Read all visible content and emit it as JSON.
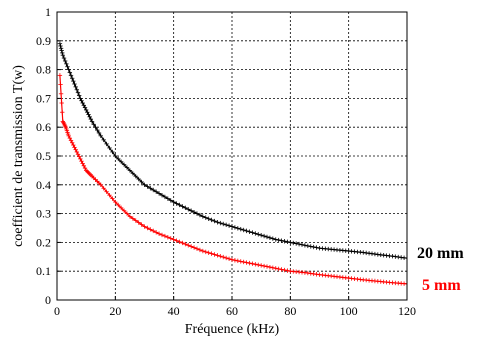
{
  "chart_data": {
    "type": "line",
    "title": "",
    "xlabel": "Fréquence (kHz)",
    "ylabel": "coefficient de transmission T(w)",
    "xlim": [
      0,
      120
    ],
    "ylim": [
      0,
      1
    ],
    "xticks": [
      0,
      20,
      40,
      60,
      80,
      100,
      120
    ],
    "yticks": [
      0,
      0.1,
      0.2,
      0.3,
      0.4,
      0.5,
      0.6,
      0.7,
      0.8,
      0.9,
      1
    ],
    "grid": true,
    "marker": "+/x",
    "series": [
      {
        "name": "20 mm",
        "color": "#000000",
        "x": [
          1,
          2,
          4,
          6,
          8,
          10,
          12,
          15,
          20,
          25,
          30,
          35,
          40,
          45,
          50,
          55,
          60,
          65,
          70,
          75,
          80,
          85,
          90,
          95,
          100,
          105,
          110,
          115,
          120
        ],
        "values": [
          0.89,
          0.85,
          0.8,
          0.75,
          0.7,
          0.66,
          0.62,
          0.57,
          0.5,
          0.45,
          0.4,
          0.37,
          0.34,
          0.315,
          0.29,
          0.27,
          0.255,
          0.24,
          0.225,
          0.21,
          0.2,
          0.19,
          0.18,
          0.175,
          0.17,
          0.165,
          0.158,
          0.152,
          0.145
        ]
      },
      {
        "name": "5 mm",
        "color": "#ff0000",
        "x": [
          1,
          2,
          3,
          4,
          6,
          8,
          10,
          12,
          15,
          20,
          25,
          30,
          35,
          40,
          45,
          50,
          55,
          60,
          65,
          70,
          75,
          80,
          85,
          90,
          95,
          100,
          105,
          110,
          115,
          120
        ],
        "values": [
          0.78,
          0.62,
          0.6,
          0.57,
          0.53,
          0.49,
          0.45,
          0.43,
          0.4,
          0.34,
          0.29,
          0.255,
          0.23,
          0.21,
          0.19,
          0.17,
          0.155,
          0.14,
          0.13,
          0.12,
          0.11,
          0.1,
          0.095,
          0.088,
          0.082,
          0.076,
          0.07,
          0.065,
          0.06,
          0.056
        ]
      }
    ]
  }
}
